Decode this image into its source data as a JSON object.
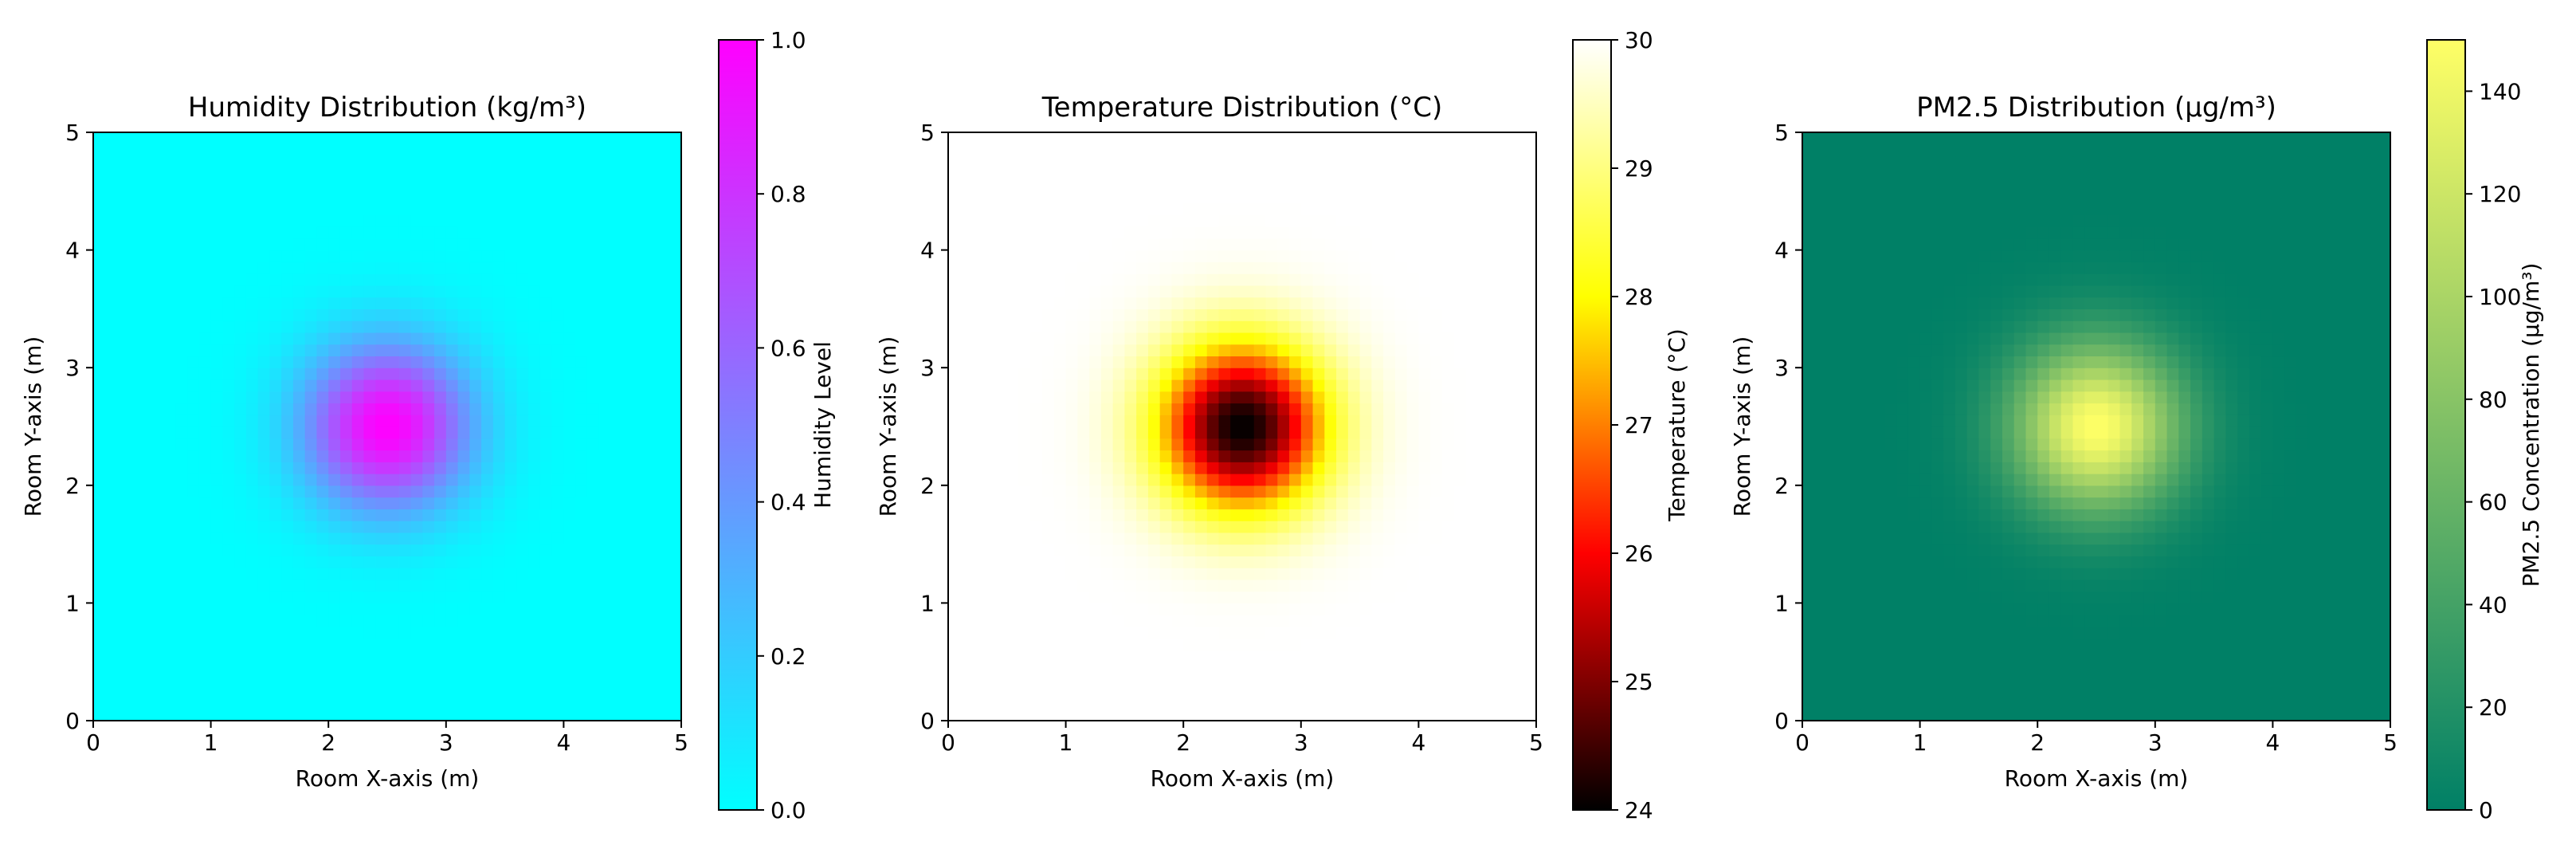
{
  "chart_data": [
    {
      "type": "heatmap",
      "title": "Humidity Distribution (kg/m³)",
      "xlabel": "Room X-axis (m)",
      "ylabel": "Room Y-axis (m)",
      "xlim": [
        0,
        5
      ],
      "ylim": [
        0,
        5
      ],
      "xticks": [
        "0",
        "1",
        "2",
        "3",
        "4",
        "5"
      ],
      "yticks": [
        "0",
        "1",
        "2",
        "3",
        "4",
        "5"
      ],
      "grid": false,
      "field": {
        "kind": "gaussian",
        "center": [
          2.5,
          2.5
        ],
        "sigma": 0.5,
        "amplitude": 1.0,
        "offset": 0.0,
        "resolution": 50
      },
      "colormap": {
        "name": "cool",
        "stops": [
          "#00ffff",
          "#ff00ff"
        ]
      },
      "colorbar": {
        "label": "Humidity Level",
        "range": [
          0,
          1
        ],
        "ticks": [
          "0.0",
          "0.2",
          "0.4",
          "0.6",
          "0.8",
          "1.0"
        ]
      }
    },
    {
      "type": "heatmap",
      "title": "Temperature Distribution (°C)",
      "xlabel": "Room X-axis (m)",
      "ylabel": "Room Y-axis (m)",
      "xlim": [
        0,
        5
      ],
      "ylim": [
        0,
        5
      ],
      "xticks": [
        "0",
        "1",
        "2",
        "3",
        "4",
        "5"
      ],
      "yticks": [
        "0",
        "1",
        "2",
        "3",
        "4",
        "5"
      ],
      "grid": false,
      "field": {
        "kind": "gaussian",
        "center": [
          2.5,
          2.5
        ],
        "sigma": 0.5,
        "amplitude": -6.0,
        "offset": 30.0,
        "resolution": 50
      },
      "colormap": {
        "name": "hot",
        "stops": [
          "#000000",
          "#ff0000",
          "#ffff00",
          "#ffffff"
        ]
      },
      "colorbar": {
        "label": "Temperature (°C)",
        "range": [
          24,
          30
        ],
        "ticks": [
          "24",
          "25",
          "26",
          "27",
          "28",
          "29",
          "30"
        ]
      }
    },
    {
      "type": "heatmap",
      "title": "PM2.5 Distribution (μg/m³)",
      "xlabel": "Room X-axis (m)",
      "ylabel": "Room Y-axis (m)",
      "xlim": [
        0,
        5
      ],
      "ylim": [
        0,
        5
      ],
      "xticks": [
        "0",
        "1",
        "2",
        "3",
        "4",
        "5"
      ],
      "yticks": [
        "0",
        "1",
        "2",
        "3",
        "4",
        "5"
      ],
      "grid": false,
      "field": {
        "kind": "gaussian",
        "center": [
          2.5,
          2.5
        ],
        "sigma": 0.5,
        "amplitude": 150.0,
        "offset": 0.0,
        "resolution": 50
      },
      "colormap": {
        "name": "summer",
        "stops": [
          "#008066",
          "#ffff66"
        ]
      },
      "colorbar": {
        "label": "PM2.5 Concentration (μg/m³)",
        "range": [
          0,
          150
        ],
        "ticks": [
          "0",
          "20",
          "40",
          "60",
          "80",
          "100",
          "120",
          "140"
        ]
      }
    }
  ]
}
